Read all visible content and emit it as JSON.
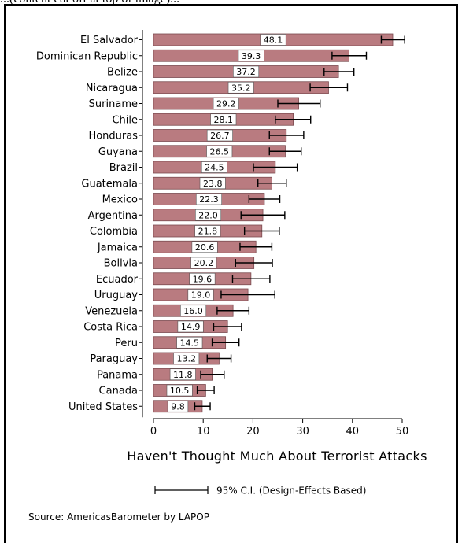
{
  "caption": "...(content cut off at top of image)...",
  "colors": {
    "bar": "#b97b80",
    "bar_edge": "#7a4a4f",
    "frame": "#000000"
  },
  "chart_data": {
    "type": "bar",
    "orientation": "horizontal",
    "categories": [
      "El Salvador",
      "Dominican Republic",
      "Belize",
      "Nicaragua",
      "Suriname",
      "Chile",
      "Honduras",
      "Guyana",
      "Brazil",
      "Guatemala",
      "Mexico",
      "Argentina",
      "Colombia",
      "Jamaica",
      "Bolivia",
      "Ecuador",
      "Uruguay",
      "Venezuela",
      "Costa Rica",
      "Peru",
      "Paraguay",
      "Panama",
      "Canada",
      "United States"
    ],
    "values": [
      48.1,
      39.3,
      37.2,
      35.2,
      29.2,
      28.1,
      26.7,
      26.5,
      24.5,
      23.8,
      22.3,
      22.0,
      21.8,
      20.6,
      20.2,
      19.6,
      19.0,
      16.0,
      14.9,
      14.5,
      13.2,
      11.8,
      10.5,
      9.8
    ],
    "value_labels": [
      "48.1",
      "39.3",
      "37.2",
      "35.2",
      "29.2",
      "28.1",
      "26.7",
      "26.5",
      "24.5",
      "23.8",
      "22.3",
      "22.0",
      "21.8",
      "20.6",
      "20.2",
      "19.6",
      "19.0",
      "16.0",
      "14.9",
      "14.5",
      "13.2",
      "11.8",
      "10.5",
      "9.8"
    ],
    "ci_low": [
      45.8,
      35.9,
      34.3,
      31.5,
      25.0,
      24.5,
      23.3,
      23.3,
      20.1,
      21.0,
      19.2,
      17.6,
      18.3,
      17.4,
      16.5,
      15.9,
      13.6,
      12.8,
      12.1,
      11.8,
      10.8,
      9.5,
      8.8,
      8.3
    ],
    "ci_high": [
      50.5,
      42.8,
      40.3,
      39.0,
      33.5,
      31.6,
      30.2,
      29.7,
      28.9,
      26.7,
      25.4,
      26.4,
      25.3,
      23.8,
      23.9,
      23.4,
      24.4,
      19.2,
      17.7,
      17.2,
      15.6,
      14.2,
      12.2,
      11.4
    ],
    "xlabel": "Haven't Thought Much About Terrorist Attacks",
    "xlim": [
      0,
      50
    ],
    "xticks": [
      "0",
      "10",
      "20",
      "30",
      "40",
      "50"
    ],
    "xtick_values": [
      0,
      10,
      20,
      30,
      40,
      50
    ],
    "legend": "95% C.I. (Design-Effects Based)",
    "source": "Source: AmericasBarometer by  LAPOP",
    "grid": false
  }
}
